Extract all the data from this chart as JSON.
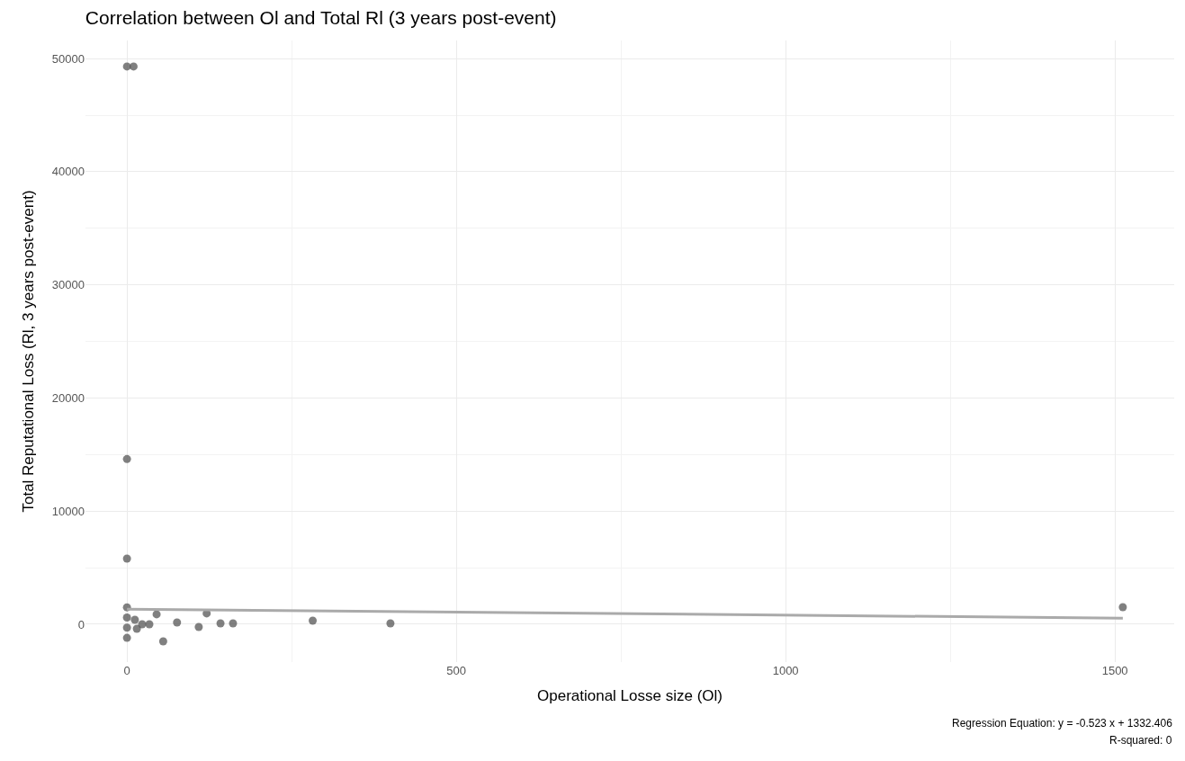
{
  "chart_data": {
    "type": "scatter",
    "title": "Correlation between Ol and Total Rl (3 years post-event)",
    "xlabel": "Operational Losse size (Ol)",
    "ylabel": "Total Reputational Loss (Rl, 3 years post-event)",
    "series": [
      {
        "color": "#555555",
        "marker": "circle",
        "x": [
          0,
          10,
          0,
          0,
          0,
          0,
          0,
          0,
          45,
          12,
          15,
          23,
          34,
          76,
          55,
          109,
          121,
          142,
          161,
          282,
          400,
          1512
        ],
        "values": [
          49300,
          49300,
          14600,
          5800,
          1500,
          600,
          -300,
          -1200,
          880,
          400,
          -400,
          0,
          0,
          160,
          -1510,
          -240,
          960,
          80,
          80,
          320,
          80,
          1510
        ]
      },
      {
        "type": "line",
        "color": "#aaaaaa",
        "x": [
          0,
          1512
        ],
        "values": [
          1330,
          540
        ]
      }
    ],
    "xlim": [
      -63,
      1590
    ],
    "ylim": [
      -3340,
      51600
    ],
    "xticks": [
      0,
      500,
      1000,
      1500
    ],
    "yticks": [
      0,
      10000,
      20000,
      30000,
      40000,
      50000
    ],
    "grid": true,
    "annotations": [
      "Regression Equation: y = -0.523 x + 1332.406",
      "R-squared: 0"
    ]
  }
}
